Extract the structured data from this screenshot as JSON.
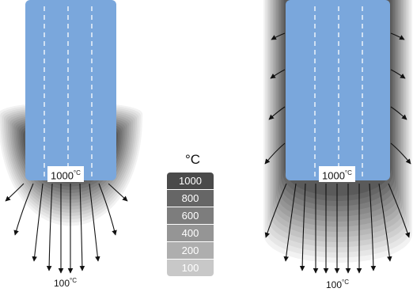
{
  "legend": {
    "unit": "°C",
    "levels": [
      {
        "label": "1000",
        "color": "#4a4a4a"
      },
      {
        "label": "800",
        "color": "#666666"
      },
      {
        "label": "600",
        "color": "#7d7d7d"
      },
      {
        "label": "400",
        "color": "#959595"
      },
      {
        "label": "200",
        "color": "#aeaeae"
      },
      {
        "label": "100",
        "color": "#c8c8c8"
      }
    ]
  },
  "left_panel": {
    "heated_temp": "1000",
    "heated_unit": "°C",
    "edge_temp": "100",
    "edge_unit": "°C"
  },
  "right_panel": {
    "heated_temp": "1000",
    "heated_unit": "°C",
    "edge_temp": "100",
    "edge_unit": "°C"
  },
  "colors": {
    "block_fill": "#7aa7dc",
    "gradient_dark": "#5a5a5a",
    "gradient_light": "#f2f2f2"
  }
}
